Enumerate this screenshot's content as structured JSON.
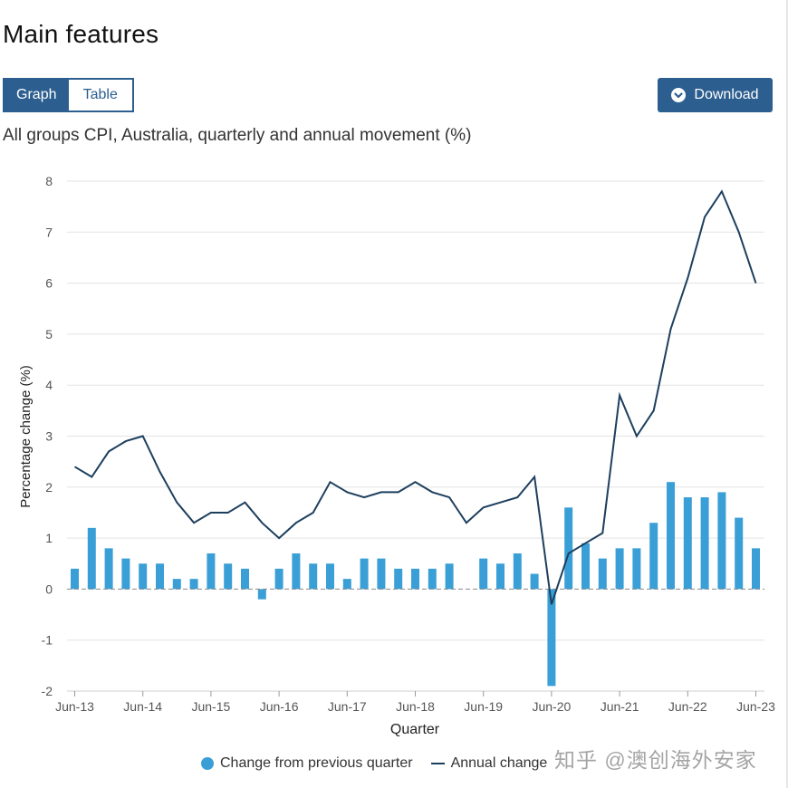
{
  "page": {
    "title": "Main features",
    "toggle": {
      "graph_label": "Graph",
      "table_label": "Table",
      "active": "Graph"
    },
    "download_label": "Download",
    "watermark": "知乎 @澳创海外安家"
  },
  "colors": {
    "bar": "#3a9fd6",
    "line": "#1d3f5e",
    "accent": "#2c5e8f"
  },
  "chart_data": {
    "type": "bar+line",
    "title": "All groups CPI, Australia, quarterly and annual movement (%)",
    "xlabel": "Quarter",
    "ylabel": "Percentage change (%)",
    "ylim": [
      -2,
      8
    ],
    "yticks": [
      8,
      7,
      6,
      5,
      4,
      3,
      2,
      1,
      0,
      -1,
      -2
    ],
    "x_tick_labels": [
      "Jun-13",
      "Jun-14",
      "Jun-15",
      "Jun-16",
      "Jun-17",
      "Jun-18",
      "Jun-19",
      "Jun-20",
      "Jun-21",
      "Jun-22",
      "Jun-23"
    ],
    "x_tick_indices": [
      0,
      4,
      8,
      12,
      16,
      20,
      24,
      28,
      32,
      36,
      40
    ],
    "categories": [
      "Jun-13",
      "Sep-13",
      "Dec-13",
      "Mar-14",
      "Jun-14",
      "Sep-14",
      "Dec-14",
      "Mar-15",
      "Jun-15",
      "Sep-15",
      "Dec-15",
      "Mar-16",
      "Jun-16",
      "Sep-16",
      "Dec-16",
      "Mar-17",
      "Jun-17",
      "Sep-17",
      "Dec-17",
      "Mar-18",
      "Jun-18",
      "Sep-18",
      "Dec-18",
      "Mar-19",
      "Jun-19",
      "Sep-19",
      "Dec-19",
      "Mar-20",
      "Jun-20",
      "Sep-20",
      "Dec-20",
      "Mar-21",
      "Jun-21",
      "Sep-21",
      "Dec-21",
      "Mar-22",
      "Jun-22",
      "Sep-22",
      "Dec-22",
      "Mar-23",
      "Jun-23"
    ],
    "series": [
      {
        "name": "Change from previous quarter",
        "kind": "bar",
        "values": [
          0.4,
          1.2,
          0.8,
          0.6,
          0.5,
          0.5,
          0.2,
          0.2,
          0.7,
          0.5,
          0.4,
          -0.2,
          0.4,
          0.7,
          0.5,
          0.5,
          0.2,
          0.6,
          0.6,
          0.4,
          0.4,
          0.4,
          0.5,
          0.0,
          0.6,
          0.5,
          0.7,
          0.3,
          -1.9,
          1.6,
          0.9,
          0.6,
          0.8,
          0.8,
          1.3,
          2.1,
          1.8,
          1.8,
          1.9,
          1.4,
          0.8
        ]
      },
      {
        "name": "Annual change",
        "kind": "line",
        "values": [
          2.4,
          2.2,
          2.7,
          2.9,
          3.0,
          2.3,
          1.7,
          1.3,
          1.5,
          1.5,
          1.7,
          1.3,
          1.0,
          1.3,
          1.5,
          2.1,
          1.9,
          1.8,
          1.9,
          1.9,
          2.1,
          1.9,
          1.8,
          1.3,
          1.6,
          1.7,
          1.8,
          2.2,
          -0.3,
          0.7,
          0.9,
          1.1,
          3.8,
          3.0,
          3.5,
          5.1,
          6.1,
          7.3,
          7.8,
          7.0,
          6.0
        ]
      }
    ],
    "legend": [
      "Change from previous quarter",
      "Annual change"
    ],
    "legend_position": "bottom"
  }
}
